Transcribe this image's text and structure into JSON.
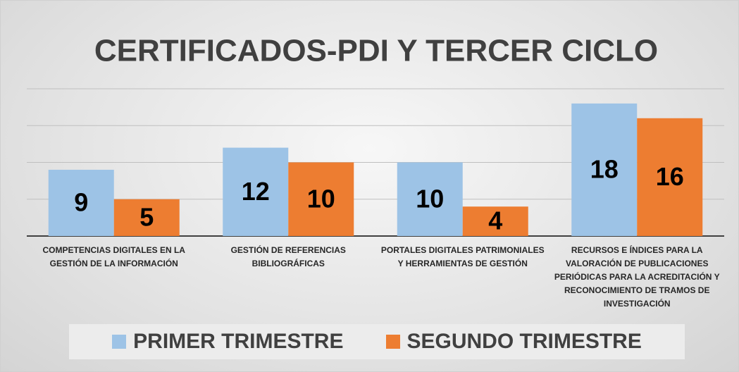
{
  "chart_data": {
    "type": "bar",
    "title": "CERTIFICADOS-PDI Y TERCER CICLO",
    "categories": [
      "COMPETENCIAS DIGITALES EN LA GESTIÓN DE LA INFORMACIÓN",
      "GESTIÓN DE REFERENCIAS BIBLIOGRÁFICAS",
      "PORTALES DIGITALES PATRIMONIALES Y HERRAMIENTAS DE GESTIÓN",
      "RECURSOS E ÍNDICES PARA LA VALORACIÓN DE PUBLICACIONES PERIÓDICAS PARA LA ACREDITACIÓN Y RECONOCIMIENTO DE TRAMOS DE INVESTIGACIÓN"
    ],
    "series": [
      {
        "name": "PRIMER TRIMESTRE",
        "color": "#9dc3e6",
        "values": [
          9,
          12,
          10,
          18
        ]
      },
      {
        "name": "SEGUNDO TRIMESTRE",
        "color": "#ed7d31",
        "values": [
          5,
          10,
          4,
          16
        ]
      }
    ],
    "ylim": [
      0,
      20
    ],
    "yticks": [
      0,
      5,
      10,
      15,
      20
    ],
    "grid": true
  }
}
